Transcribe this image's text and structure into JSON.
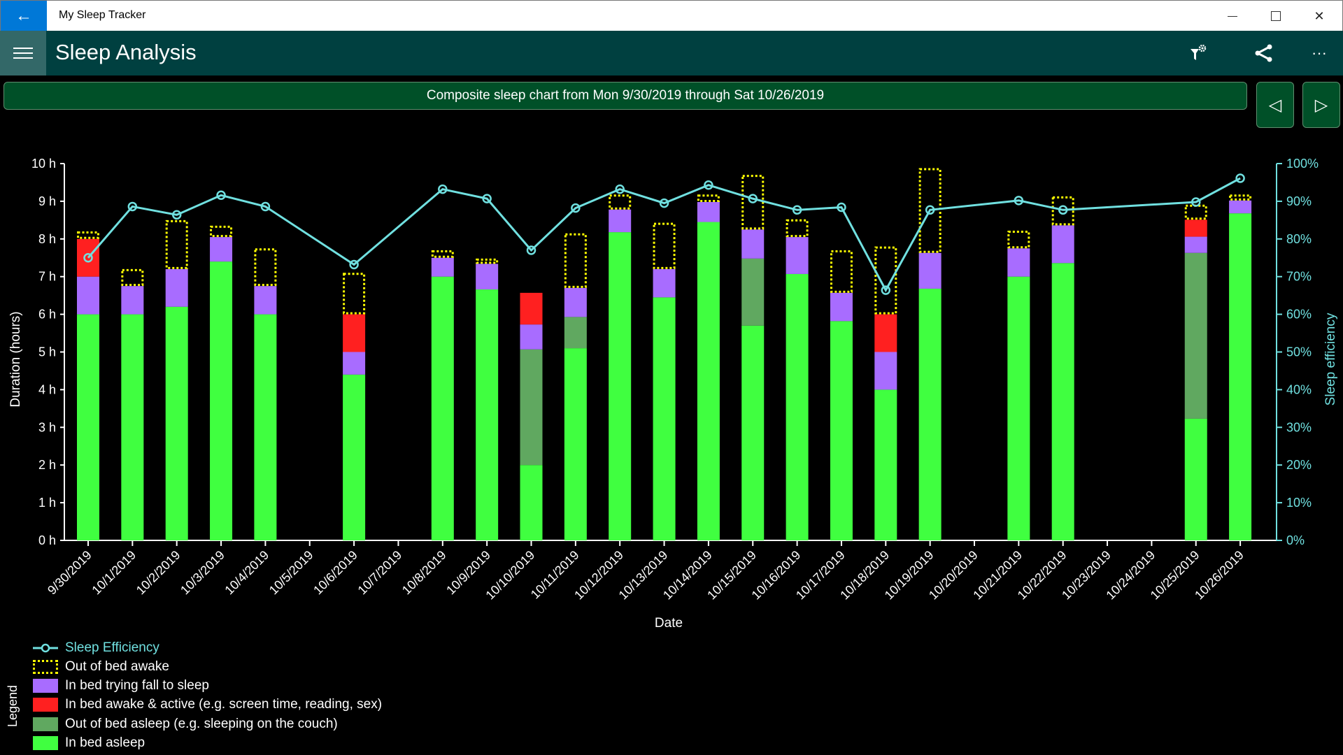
{
  "window": {
    "title": "My Sleep Tracker",
    "back_icon": "arrow-left",
    "minimize_icon": "minimize",
    "maximize_icon": "maximize",
    "close_icon": "close"
  },
  "header": {
    "title": "Sleep Analysis",
    "menu_icon": "hamburger",
    "actions": [
      {
        "icon": "filter-settings"
      },
      {
        "icon": "share"
      },
      {
        "icon": "more-ellipsis",
        "label": "···"
      }
    ]
  },
  "banner": {
    "text": "Composite sleep chart from Mon 9/30/2019 through Sat 10/26/2019",
    "prev_label": "◁",
    "next_label": "▷"
  },
  "colors": {
    "in_bed_asleep": "#40ff40",
    "out_of_bed_asleep": "#60a860",
    "in_bed_awake_active": "#ff2020",
    "in_bed_trying": "#a86cff",
    "out_of_bed_awake": "#ffff00",
    "efficiency": "#70e0e0",
    "header": "#004040",
    "banner": "#005028",
    "accent": "#0078d7"
  },
  "chart_data": {
    "type": "bar",
    "stacked": true,
    "xlabel": "Date",
    "ylabel": "Duration (hours)",
    "y2label": "Sleep efficiency",
    "ylim": [
      0,
      10
    ],
    "y2lim": [
      0,
      100
    ],
    "yticks": [
      "0 h",
      "1 h",
      "2 h",
      "3 h",
      "4 h",
      "5 h",
      "6 h",
      "7 h",
      "8 h",
      "9 h",
      "10 h"
    ],
    "y2ticks": [
      "0%",
      "10%",
      "20%",
      "30%",
      "40%",
      "50%",
      "60%",
      "70%",
      "80%",
      "90%",
      "100%"
    ],
    "grid": false,
    "legend_title": "Legend",
    "legend_placement": "bottom-left",
    "categories": [
      "9/30/2019",
      "10/1/2019",
      "10/2/2019",
      "10/3/2019",
      "10/4/2019",
      "10/5/2019",
      "10/6/2019",
      "10/7/2019",
      "10/8/2019",
      "10/9/2019",
      "10/10/2019",
      "10/11/2019",
      "10/12/2019",
      "10/13/2019",
      "10/14/2019",
      "10/15/2019",
      "10/16/2019",
      "10/17/2019",
      "10/18/2019",
      "10/19/2019",
      "10/20/2019",
      "10/21/2019",
      "10/22/2019",
      "10/23/2019",
      "10/24/2019",
      "10/25/2019",
      "10/26/2019"
    ],
    "series": [
      {
        "name": "In bed asleep",
        "key": "in_bed_asleep",
        "values": [
          6.0,
          6.0,
          6.2,
          7.4,
          6.0,
          0,
          4.4,
          0,
          7.0,
          6.66,
          2.0,
          5.1,
          8.18,
          6.45,
          8.45,
          5.7,
          7.07,
          5.82,
          4.0,
          6.68,
          0,
          7.0,
          7.36,
          0,
          0,
          3.23,
          8.68
        ]
      },
      {
        "name": "Out of bed asleep (e.g. sleeping on the couch)",
        "key": "out_of_bed_asleep",
        "values": [
          0,
          0,
          0,
          0,
          0,
          0,
          0,
          0,
          0,
          0,
          3.07,
          0.83,
          0,
          0,
          0,
          1.78,
          0,
          0,
          0,
          0,
          0,
          0,
          0,
          0,
          0,
          4.4,
          0
        ]
      },
      {
        "name": "In bed trying fall to sleep",
        "key": "in_bed_trying",
        "values": [
          1.0,
          0.75,
          1.0,
          0.65,
          0.75,
          0,
          0.6,
          0,
          0.5,
          0.68,
          0.66,
          0.77,
          0.6,
          0.75,
          0.53,
          0.77,
          0.98,
          0.75,
          1.0,
          0.95,
          0,
          0.75,
          1.0,
          0,
          0,
          0.43,
          0.34
        ]
      },
      {
        "name": "In bed awake & active (e.g. screen time, reading, sex)",
        "key": "in_bed_awake_active",
        "values": [
          1.0,
          0,
          0,
          0,
          0,
          0,
          1.0,
          0,
          0,
          0,
          0.84,
          0,
          0,
          0,
          0,
          0,
          0,
          0,
          1.0,
          0,
          0,
          0,
          0,
          0,
          0,
          0.45,
          0
        ]
      },
      {
        "name": "Out of bed awake",
        "key": "out_of_bed_awake",
        "style": "dotted-outline",
        "values": [
          0.2,
          0.45,
          1.3,
          0.3,
          1.0,
          0,
          1.1,
          0,
          0.2,
          0.14,
          0,
          1.45,
          0.4,
          1.23,
          0.2,
          1.45,
          0.47,
          1.13,
          1.8,
          2.25,
          0,
          0.47,
          0.77,
          0,
          0,
          0.4,
          0.16
        ]
      }
    ],
    "line": {
      "name": "Sleep Efficiency",
      "axis": "right",
      "unit": "%",
      "values": [
        75,
        88.6,
        86.4,
        91.6,
        88.6,
        null,
        73.2,
        null,
        93.2,
        90.7,
        77,
        88.2,
        93.2,
        89.5,
        94.3,
        90.7,
        87.7,
        88.4,
        66.4,
        87.7,
        null,
        90.2,
        87.7,
        null,
        null,
        89.8,
        96.1
      ]
    }
  },
  "legend": [
    {
      "label": "Sleep Efficiency",
      "type": "line"
    },
    {
      "label": "Out of bed awake",
      "type": "dotted"
    },
    {
      "label": "In bed trying fall to sleep",
      "color_key": "in_bed_trying"
    },
    {
      "label": "In bed awake & active (e.g. screen time, reading, sex)",
      "color_key": "in_bed_awake_active"
    },
    {
      "label": "Out of bed asleep (e.g. sleeping on the couch)",
      "color_key": "out_of_bed_asleep"
    },
    {
      "label": "In bed asleep",
      "color_key": "in_bed_asleep"
    }
  ]
}
